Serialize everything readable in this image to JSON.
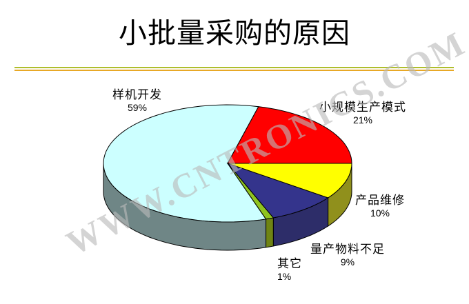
{
  "page": {
    "title": "小批量采购的原因",
    "watermark": "WWW.CNTRONICS.COM",
    "divider_colors": {
      "top": "#AFBE2C",
      "bottom": "#E8A826"
    }
  },
  "chart_data": {
    "type": "pie",
    "variant": "3d-exploded-none",
    "title": "小批量采购的原因",
    "unit": "%",
    "direction": "clockwise",
    "start_angle_deg": 162,
    "legend": "none",
    "slices": [
      {
        "label": "样机开发",
        "value": 59,
        "pct_label": "59%",
        "color": "#CCFFFF",
        "side_color": "#6F8686"
      },
      {
        "label": "小规模生产模式",
        "value": 21,
        "pct_label": "21%",
        "color": "#FF0000",
        "side_color": "#990000"
      },
      {
        "label": "产品维修",
        "value": 10,
        "pct_label": "10%",
        "color": "#FFFF00",
        "side_color": "#90901C"
      },
      {
        "label": "量产物料不足",
        "value": 9,
        "pct_label": "9%",
        "color": "#34348C",
        "side_color": "#2D2D69"
      },
      {
        "label": "其它",
        "value": 1,
        "pct_label": "1%",
        "color": "#8FC31F",
        "side_color": "#6F8414"
      }
    ]
  }
}
